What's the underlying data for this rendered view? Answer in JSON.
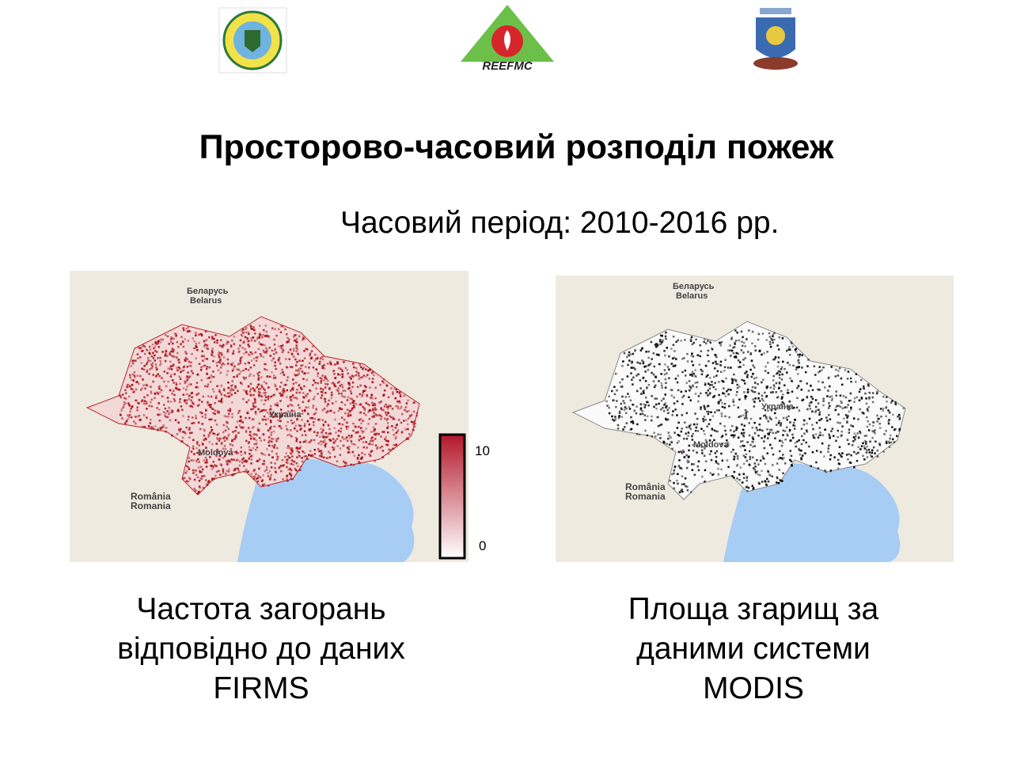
{
  "logos": {
    "center_text": "REEFMC"
  },
  "title": "Просторово-часовий розподіл пожеж",
  "subtitle": "Часовий період: 2010-2016 рр.",
  "left_map": {
    "labels": [
      "Беларусь",
      "Belarus",
      "Moldova",
      "România",
      "Romania",
      "Україна"
    ],
    "colorbar": {
      "ticks": [
        10,
        0
      ]
    },
    "caption": [
      "Частота загорань",
      "відповідно до даних",
      "FIRMS"
    ]
  },
  "right_map": {
    "labels": [
      "Беларусь",
      "Belarus",
      "Moldova",
      "România",
      "Romania",
      "Україна"
    ],
    "caption": [
      "Площа згарищ за",
      "даними системи",
      "MODIS"
    ]
  }
}
